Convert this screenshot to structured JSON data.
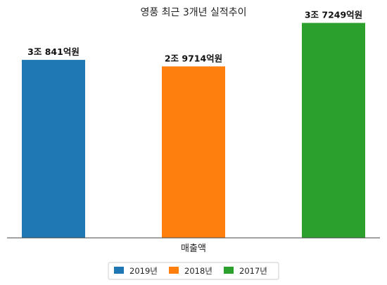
{
  "chart_data": {
    "type": "bar",
    "title": "영풍 최근 3개년 실적추이",
    "categories": [
      "매출액"
    ],
    "xlabel": "매출액",
    "ylabel": "",
    "series": [
      {
        "name": "2019년",
        "values": [
          30841
        ],
        "label": "3조 841억원",
        "color": "#1f77b4"
      },
      {
        "name": "2018년",
        "values": [
          29714
        ],
        "label": "2조 9714억원",
        "color": "#ff7f0e"
      },
      {
        "name": "2017년",
        "values": [
          37249
        ],
        "label": "3조 7249억원",
        "color": "#2ca02c"
      }
    ],
    "ylim": [
      0,
      40000
    ],
    "grid": false,
    "legend_position": "bottom"
  }
}
